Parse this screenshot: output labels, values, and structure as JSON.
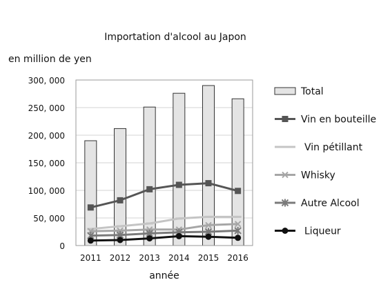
{
  "chart_data": {
    "type": "bar",
    "title": "Importation d'alcool au Japon",
    "ylabel": "en million de yen",
    "xlabel": "année",
    "categories": [
      "2011",
      "2012",
      "2013",
      "2014",
      "2015",
      "2016"
    ],
    "ylim": [
      0,
      300000
    ],
    "yticks": [
      0,
      50000,
      100000,
      150000,
      200000,
      250000,
      300000
    ],
    "ytick_labels": [
      "0",
      "50, 000",
      "100, 000",
      "150, 000",
      "200, 000",
      "250, 000",
      "300, 000"
    ],
    "grid": "horizontal",
    "legend_position": "right",
    "series": [
      {
        "name": "Total",
        "kind": "bar",
        "color": "#e4e4e4",
        "edge": "#333333",
        "values": [
          190000,
          212000,
          251000,
          276000,
          290000,
          266000
        ]
      },
      {
        "name": "Vin en bouteille",
        "kind": "line",
        "color": "#555555",
        "marker": "square",
        "values": [
          69000,
          82000,
          102000,
          110000,
          113000,
          99000
        ]
      },
      {
        "name": "Vin pétillant",
        "kind": "line",
        "color": "#c4c4c4",
        "marker": "dash",
        "values": [
          30000,
          35000,
          40000,
          49000,
          52000,
          52000
        ]
      },
      {
        "name": "Whisky",
        "kind": "line",
        "color": "#a6a6a6",
        "marker": "x",
        "values": [
          26000,
          27000,
          29000,
          29000,
          37000,
          39000
        ]
      },
      {
        "name": "Autre Alcool",
        "kind": "line",
        "color": "#7a7a7a",
        "marker": "star",
        "values": [
          18000,
          19000,
          22000,
          24000,
          25000,
          27000
        ]
      },
      {
        "name": "Liqueur",
        "kind": "line",
        "color": "#111111",
        "marker": "circle",
        "values": [
          9000,
          10000,
          13000,
          17000,
          16000,
          14000
        ]
      }
    ]
  }
}
